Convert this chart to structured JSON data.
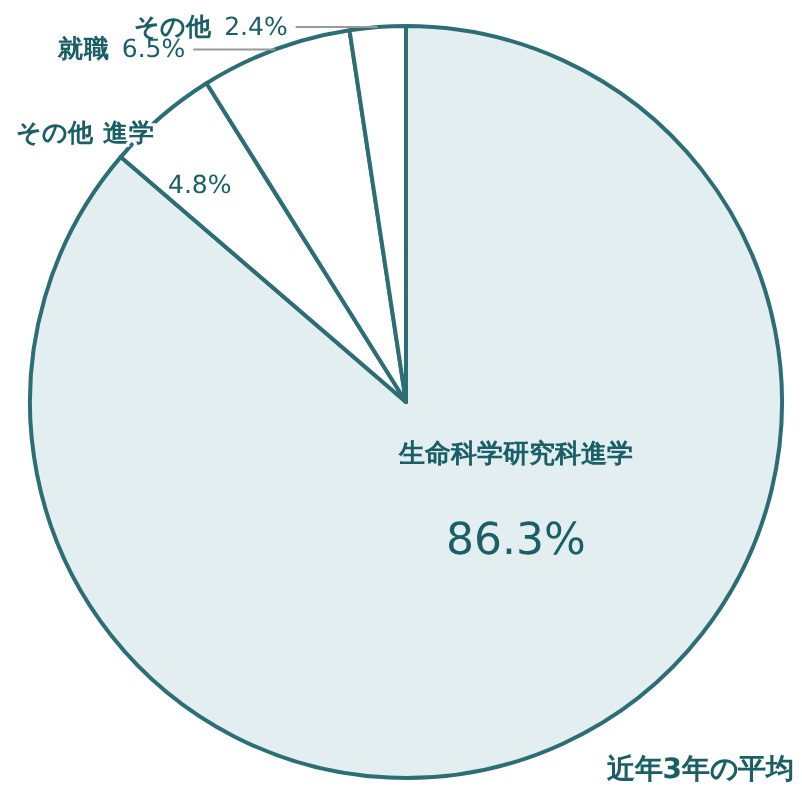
{
  "chart_data": {
    "type": "pie",
    "categories": [
      "生命科学研究科進学",
      "その他 進学",
      "就職",
      "その他"
    ],
    "values": [
      86.3,
      4.8,
      6.5,
      2.4
    ],
    "value_labels": [
      "86.3%",
      "4.8%",
      "6.5%",
      "2.4%"
    ],
    "colors": [
      "#e2eef0",
      "#ffffff",
      "#ffffff",
      "#ffffff"
    ],
    "annotations": [
      "近年3年の平均"
    ]
  }
}
